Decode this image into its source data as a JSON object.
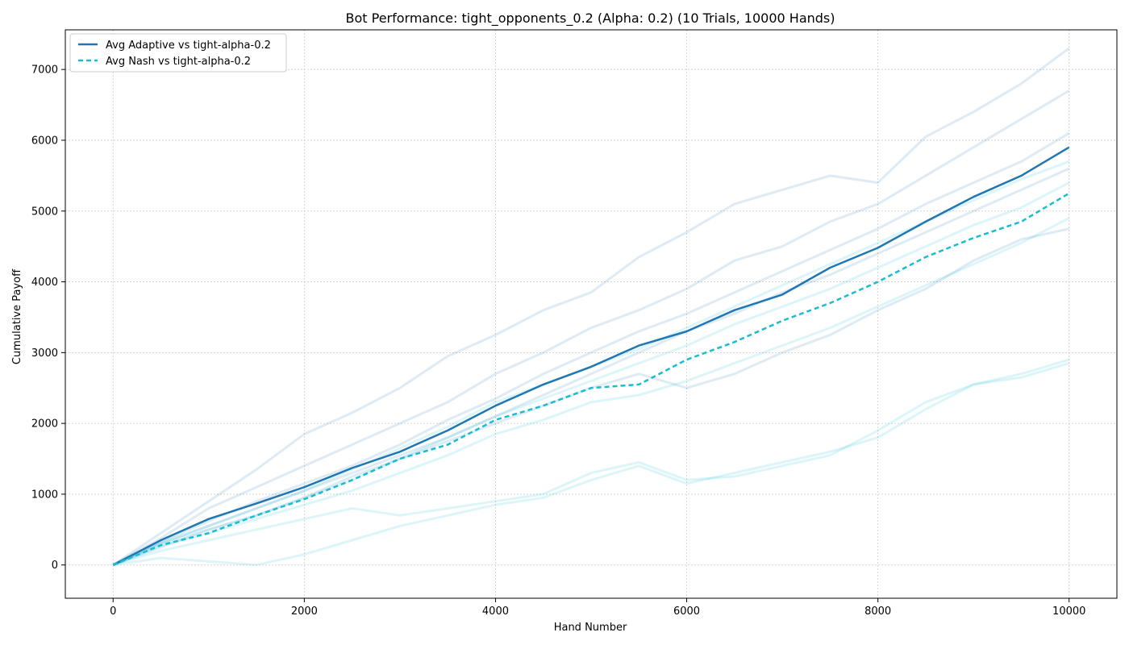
{
  "chart_data": {
    "type": "line",
    "title": "Bot Performance: tight_opponents_0.2 (Alpha: 0.2) (10 Trials, 10000 Hands)",
    "xlabel": "Hand Number",
    "ylabel": "Cumulative Payoff",
    "xlim": [
      -500,
      10500
    ],
    "ylim": [
      -470,
      7560
    ],
    "xticks": [
      0,
      2000,
      4000,
      6000,
      8000,
      10000
    ],
    "yticks": [
      0,
      1000,
      2000,
      3000,
      4000,
      5000,
      6000,
      7000
    ],
    "grid": true,
    "legend_position": "top-left",
    "colors": {
      "adaptive": "#1f77b4",
      "nash": "#17becf",
      "adaptive_trials": "#1f77b4",
      "nash_trials": "#17becf"
    },
    "series": [
      {
        "name": "Avg Adaptive vs tight-alpha-0.2",
        "style": "solid",
        "x": [
          0,
          500,
          1000,
          1500,
          2000,
          2500,
          3000,
          3500,
          4000,
          4500,
          5000,
          5500,
          6000,
          6500,
          7000,
          7500,
          8000,
          8500,
          9000,
          9500,
          10000
        ],
        "y": [
          0,
          350,
          650,
          870,
          1100,
          1370,
          1600,
          1900,
          2250,
          2550,
          2800,
          3100,
          3300,
          3600,
          3820,
          4200,
          4480,
          4850,
          5200,
          5500,
          5900
        ]
      },
      {
        "name": "Avg Nash vs tight-alpha-0.2",
        "style": "dashed",
        "x": [
          0,
          500,
          1000,
          1500,
          2000,
          2500,
          3000,
          3500,
          4000,
          4500,
          5000,
          5500,
          6000,
          6500,
          7000,
          7500,
          8000,
          8500,
          9000,
          9500,
          10000
        ],
        "y": [
          0,
          280,
          450,
          700,
          930,
          1200,
          1500,
          1700,
          2050,
          2250,
          2500,
          2550,
          2900,
          3150,
          3450,
          3700,
          4000,
          4350,
          4620,
          4850,
          5250
        ]
      }
    ],
    "trials": [
      {
        "group": "adaptive",
        "x": [
          0,
          500,
          1000,
          1500,
          2000,
          2500,
          3000,
          3500,
          4000,
          4500,
          5000,
          5500,
          6000,
          6500,
          7000,
          7500,
          8000,
          8500,
          9000,
          9500,
          10000
        ],
        "y": [
          0,
          450,
          900,
          1350,
          1850,
          2150,
          2500,
          2950,
          3250,
          3600,
          3850,
          4350,
          4700,
          5100,
          5300,
          5500,
          5400,
          6050,
          6400,
          6800,
          7300
        ]
      },
      {
        "group": "adaptive",
        "x": [
          0,
          500,
          1000,
          1500,
          2000,
          2500,
          3000,
          3500,
          4000,
          4500,
          5000,
          5500,
          6000,
          6500,
          7000,
          7500,
          8000,
          8500,
          9000,
          9500,
          10000
        ],
        "y": [
          0,
          380,
          800,
          1100,
          1400,
          1700,
          2000,
          2300,
          2700,
          3000,
          3350,
          3600,
          3900,
          4300,
          4500,
          4850,
          5100,
          5500,
          5900,
          6300,
          6700
        ]
      },
      {
        "group": "adaptive",
        "x": [
          0,
          500,
          1000,
          1500,
          2000,
          2500,
          3000,
          3500,
          4000,
          4500,
          5000,
          5500,
          6000,
          6500,
          7000,
          7500,
          8000,
          8500,
          9000,
          9500,
          10000
        ],
        "y": [
          0,
          330,
          620,
          900,
          1150,
          1400,
          1700,
          2050,
          2350,
          2700,
          3000,
          3300,
          3550,
          3850,
          4150,
          4450,
          4750,
          5100,
          5400,
          5700,
          6100
        ]
      },
      {
        "group": "adaptive",
        "x": [
          0,
          500,
          1000,
          1500,
          2000,
          2500,
          3000,
          3500,
          4000,
          4500,
          5000,
          5500,
          6000,
          6500,
          7000,
          7500,
          8000,
          8500,
          9000,
          9500,
          10000
        ],
        "y": [
          0,
          300,
          550,
          800,
          1050,
          1300,
          1550,
          1800,
          2100,
          2400,
          2700,
          3000,
          3300,
          3550,
          3850,
          4100,
          4400,
          4700,
          5000,
          5300,
          5600
        ]
      },
      {
        "group": "adaptive",
        "x": [
          0,
          500,
          1000,
          1500,
          2000,
          2500,
          3000,
          3500,
          4000,
          4500,
          5000,
          5500,
          6000,
          6500,
          7000,
          7500,
          8000,
          8500,
          9000,
          9500,
          10000
        ],
        "y": [
          0,
          250,
          500,
          700,
          950,
          1250,
          1500,
          1750,
          2000,
          2250,
          2500,
          2700,
          2500,
          2700,
          3000,
          3250,
          3600,
          3900,
          4300,
          4600,
          4750
        ]
      },
      {
        "group": "nash",
        "x": [
          0,
          500,
          1000,
          1500,
          2000,
          2500,
          3000,
          3500,
          4000,
          4500,
          5000,
          5500,
          6000,
          6500,
          7000,
          7500,
          8000,
          8500,
          9000,
          9500,
          10000
        ],
        "y": [
          0,
          200,
          350,
          500,
          650,
          800,
          700,
          800,
          900,
          1000,
          1300,
          1450,
          1200,
          1250,
          1400,
          1550,
          1900,
          2300,
          2550,
          2650,
          2850
        ]
      },
      {
        "group": "nash",
        "x": [
          0,
          500,
          1000,
          1500,
          2000,
          2500,
          3000,
          3500,
          4000,
          4500,
          5000,
          5500,
          6000,
          6500,
          7000,
          7500,
          8000,
          8500,
          9000,
          9500,
          10000
        ],
        "y": [
          0,
          100,
          50,
          0,
          150,
          350,
          550,
          700,
          850,
          950,
          1200,
          1400,
          1150,
          1300,
          1450,
          1600,
          1800,
          2200,
          2550,
          2700,
          2900
        ]
      },
      {
        "group": "nash",
        "x": [
          0,
          500,
          1000,
          1500,
          2000,
          2500,
          3000,
          3500,
          4000,
          4500,
          5000,
          5500,
          6000,
          6500,
          7000,
          7500,
          8000,
          8500,
          9000,
          9500,
          10000
        ],
        "y": [
          0,
          300,
          500,
          700,
          950,
          1200,
          1500,
          1800,
          2100,
          2350,
          2600,
          2850,
          3100,
          3400,
          3650,
          3900,
          4200,
          4500,
          4800,
          5050,
          5400
        ]
      },
      {
        "group": "nash",
        "x": [
          0,
          500,
          1000,
          1500,
          2000,
          2500,
          3000,
          3500,
          4000,
          4500,
          5000,
          5500,
          6000,
          6500,
          7000,
          7500,
          8000,
          8500,
          9000,
          9500,
          10000
        ],
        "y": [
          0,
          270,
          450,
          650,
          850,
          1050,
          1300,
          1550,
          1850,
          2050,
          2300,
          2400,
          2600,
          2850,
          3100,
          3350,
          3650,
          3950,
          4250,
          4550,
          4900
        ]
      },
      {
        "group": "nash",
        "x": [
          0,
          500,
          1000,
          1500,
          2000,
          2500,
          3000,
          3500,
          4000,
          4500,
          5000,
          5500,
          6000,
          6500,
          7000,
          7500,
          8000,
          8500,
          9000,
          9500,
          10000
        ],
        "y": [
          0,
          320,
          550,
          800,
          1050,
          1350,
          1650,
          1950,
          2300,
          2550,
          2800,
          3050,
          3350,
          3650,
          3950,
          4250,
          4550,
          4850,
          5150,
          5450,
          5700
        ]
      }
    ]
  }
}
